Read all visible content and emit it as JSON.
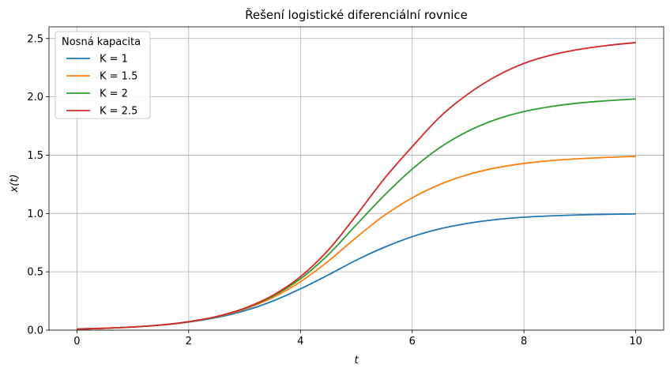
{
  "chart_data": {
    "type": "line",
    "title": "Řešení logistické diferenciální rovnice",
    "xlabel": "t",
    "ylabel": "x(t)",
    "xlim": [
      -0.5,
      10.5
    ],
    "ylim": [
      0,
      2.6
    ],
    "xticks": [
      0,
      2,
      4,
      6,
      8,
      10
    ],
    "xtick_labels": [
      "0",
      "2",
      "4",
      "6",
      "8",
      "10"
    ],
    "yticks": [
      0,
      0.5,
      1.0,
      1.5,
      2.0,
      2.5
    ],
    "ytick_labels": [
      "0.0",
      "0.5",
      "1.0",
      "1.5",
      "2.0",
      "2.5"
    ],
    "grid": true,
    "legend": {
      "title": "Nosná kapacita",
      "placement": "top-left"
    },
    "x": [
      0,
      0.5,
      1,
      1.5,
      2,
      2.5,
      3,
      3.5,
      4,
      4.5,
      5,
      5.5,
      6,
      6.5,
      7,
      7.5,
      8,
      8.5,
      9,
      9.5,
      10
    ],
    "series": [
      {
        "name": "K = 1",
        "color": "#1f77b4",
        "values": [
          0.01,
          0.016,
          0.027,
          0.043,
          0.069,
          0.108,
          0.166,
          0.248,
          0.354,
          0.474,
          0.6,
          0.71,
          0.801,
          0.869,
          0.916,
          0.948,
          0.968,
          0.98,
          0.988,
          0.993,
          0.996
        ]
      },
      {
        "name": "K = 1.5",
        "color": "#ff7f0e",
        "values": [
          0.01,
          0.016,
          0.027,
          0.044,
          0.071,
          0.114,
          0.18,
          0.278,
          0.415,
          0.592,
          0.795,
          0.983,
          1.134,
          1.25,
          1.334,
          1.391,
          1.429,
          1.454,
          1.47,
          1.481,
          1.49
        ]
      },
      {
        "name": "K = 2",
        "color": "#2ca02c",
        "values": [
          0.01,
          0.016,
          0.027,
          0.044,
          0.072,
          0.116,
          0.185,
          0.29,
          0.44,
          0.648,
          0.903,
          1.155,
          1.381,
          1.567,
          1.706,
          1.806,
          1.874,
          1.918,
          1.948,
          1.967,
          1.982
        ]
      },
      {
        "name": "K = 2.5",
        "color": "#d62728",
        "values": [
          0.01,
          0.016,
          0.027,
          0.044,
          0.073,
          0.117,
          0.188,
          0.297,
          0.458,
          0.687,
          0.985,
          1.298,
          1.573,
          1.83,
          2.025,
          2.176,
          2.287,
          2.36,
          2.408,
          2.441,
          2.465
        ]
      }
    ]
  }
}
